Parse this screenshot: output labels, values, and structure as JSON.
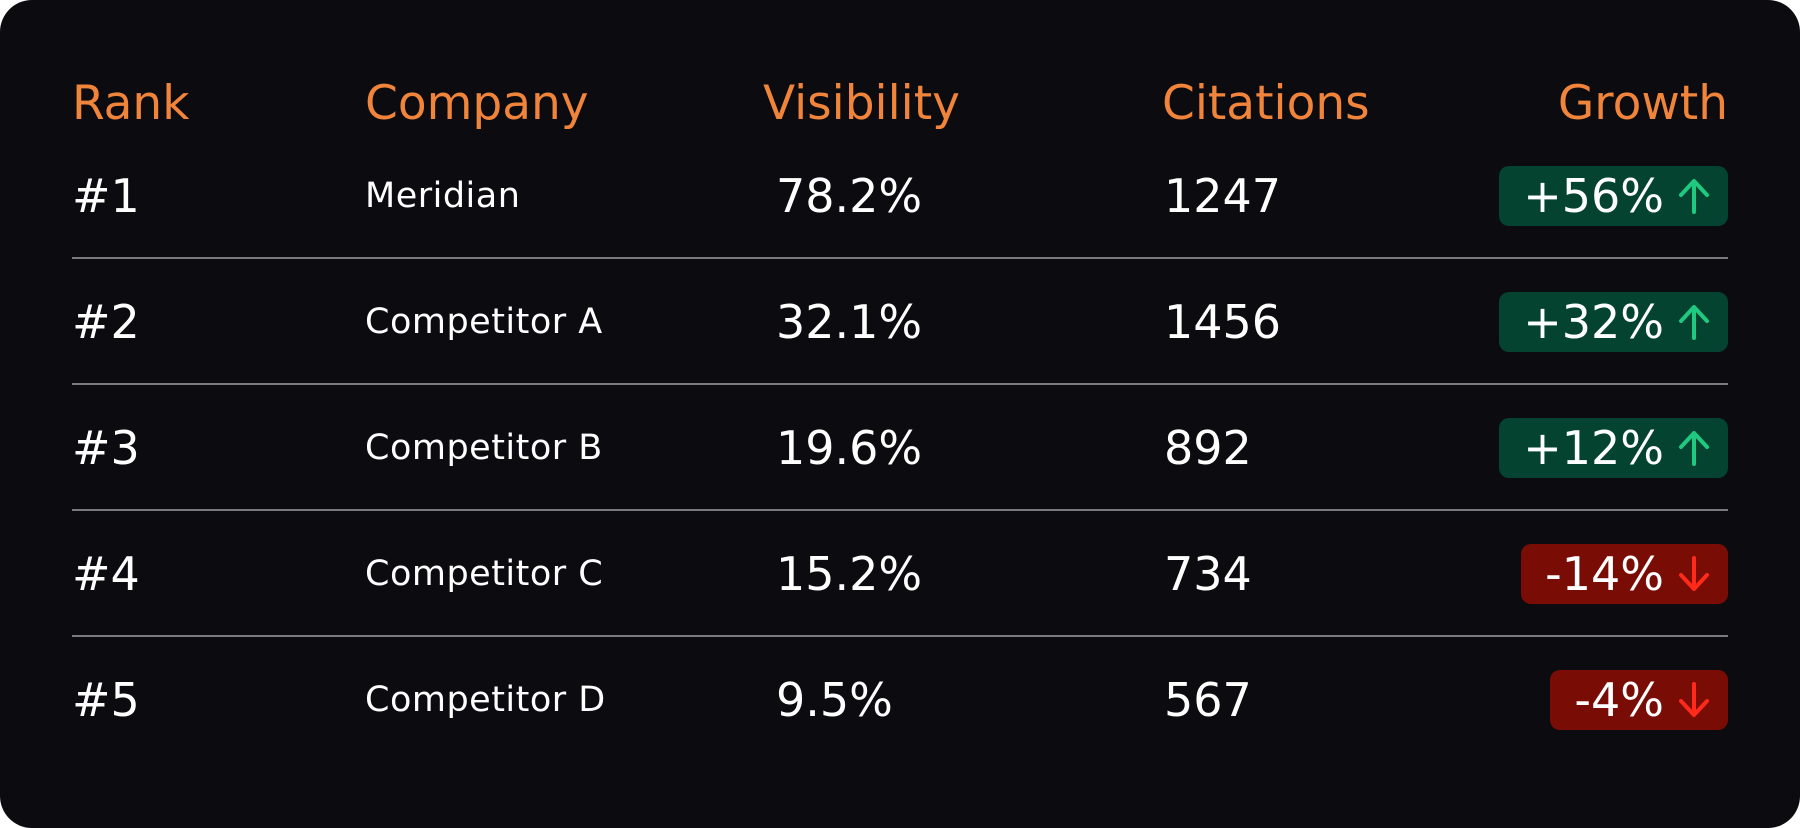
{
  "table": {
    "headers": {
      "rank": "Rank",
      "company": "Company",
      "visibility": "Visibility",
      "citations": "Citations",
      "growth": "Growth"
    },
    "rows": [
      {
        "rank": "#1",
        "company": "Meridian",
        "visibility": "78.2%",
        "citations": "1247",
        "growth": "+56%",
        "direction": "up"
      },
      {
        "rank": "#2",
        "company": "Competitor A",
        "visibility": "32.1%",
        "citations": "1456",
        "growth": "+32%",
        "direction": "up"
      },
      {
        "rank": "#3",
        "company": "Competitor B",
        "visibility": "19.6%",
        "citations": "892",
        "growth": "+12%",
        "direction": "up"
      },
      {
        "rank": "#4",
        "company": "Competitor C",
        "visibility": "15.2%",
        "citations": "734",
        "growth": "-14%",
        "direction": "down"
      },
      {
        "rank": "#5",
        "company": "Competitor D",
        "visibility": "9.5%",
        "citations": "567",
        "growth": "-4%",
        "direction": "down"
      }
    ]
  },
  "colors": {
    "background": "#0b0b10",
    "header_text": "#f0843a",
    "divider": "#7a7a80",
    "up_badge": "#034330",
    "up_arrow": "#1fc97f",
    "down_badge": "#7a0c06",
    "down_arrow": "#ff2a1a"
  },
  "icons": {
    "up": "arrow-up-icon",
    "down": "arrow-down-icon"
  }
}
